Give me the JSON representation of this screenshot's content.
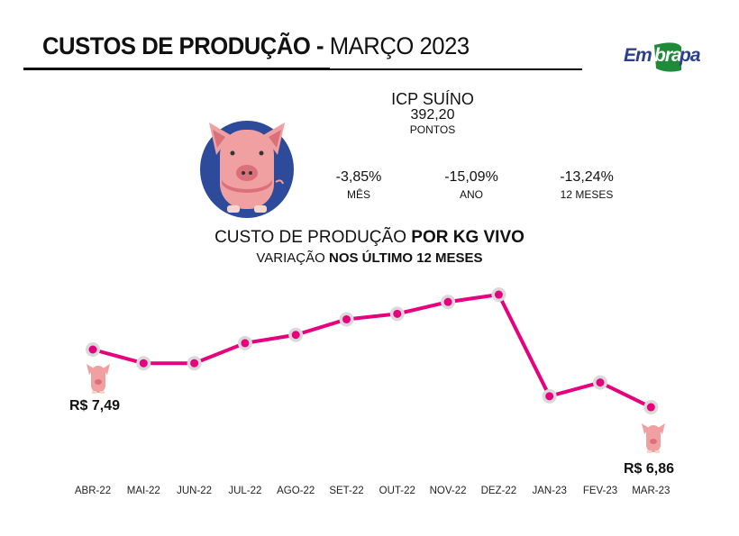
{
  "header": {
    "title_bold": "CUSTOS DE PRODUÇÃO -",
    "title_regular": " MARÇO 2023",
    "logo_text": "Embrapa"
  },
  "icp": {
    "title": "ICP SUÍNO",
    "value": "392,20",
    "unit": "PONTOS",
    "stats": [
      {
        "pct": "-3,85%",
        "label": "MÊS"
      },
      {
        "pct": "-15,09%",
        "label": "ANO"
      },
      {
        "pct": "-13,24%",
        "label": "12 MESES"
      }
    ]
  },
  "subtitle": {
    "line1_regular": "CUSTO DE PRODUÇÃO ",
    "line1_bold": "POR KG VIVO",
    "line2_regular": "VARIAÇÃO ",
    "line2_bold": "NOS ÚLTIMO 12 MESES"
  },
  "colors": {
    "line": "#e6007e",
    "marker_halo": "#d9d9d9",
    "pig_bg": "#2e4a9a",
    "pig": "#f0a0a0"
  },
  "chart_data": {
    "type": "line",
    "categories": [
      "ABR-22",
      "MAI-22",
      "JUN-22",
      "JUL-22",
      "AGO-22",
      "SET-22",
      "OUT-22",
      "NOV-22",
      "DEZ-22",
      "JAN-23",
      "FEV-23",
      "MAR-23"
    ],
    "values": [
      7.49,
      7.34,
      7.34,
      7.56,
      7.65,
      7.82,
      7.88,
      8.01,
      8.09,
      6.98,
      7.13,
      6.86
    ],
    "data_labels": [
      {
        "index": 0,
        "text": "R$ 7,49"
      },
      {
        "index": 11,
        "text": "R$ 6,86"
      }
    ],
    "grid": false,
    "legend": "none"
  }
}
